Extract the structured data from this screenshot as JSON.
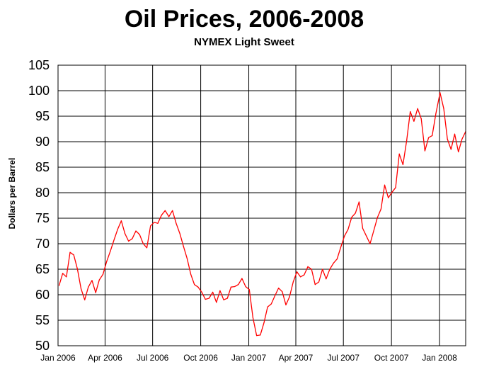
{
  "chart_data": {
    "type": "line",
    "title": "Oil Prices, 2006-2008",
    "subtitle": "NYMEX Light Sweet",
    "xlabel": "",
    "ylabel": "Dollars per Barrel",
    "ylim": [
      50,
      105
    ],
    "xlim": [
      "2006-01-01",
      "2008-02-20"
    ],
    "grid": true,
    "y_ticks": [
      "50",
      "55",
      "60",
      "65",
      "70",
      "75",
      "80",
      "85",
      "90",
      "95",
      "100",
      "105"
    ],
    "x_ticks": [
      {
        "date": "2006-01-01",
        "label": "Jan 2006"
      },
      {
        "date": "2006-04-01",
        "label": "Apr 2006"
      },
      {
        "date": "2006-07-01",
        "label": "Jul 2006"
      },
      {
        "date": "2006-10-01",
        "label": "Oct 2006"
      },
      {
        "date": "2007-01-01",
        "label": "Jan 2007"
      },
      {
        "date": "2007-04-01",
        "label": "Apr 2007"
      },
      {
        "date": "2007-07-01",
        "label": "Jul 2007"
      },
      {
        "date": "2007-10-01",
        "label": "Oct 2007"
      },
      {
        "date": "2008-01-01",
        "label": "Jan 2008"
      }
    ],
    "line_color": "#ff0000",
    "series": [
      {
        "x": [
          "2006-01-03",
          "2006-01-10",
          "2006-01-17",
          "2006-01-24",
          "2006-01-31",
          "2006-02-07",
          "2006-02-14",
          "2006-02-21",
          "2006-02-28",
          "2006-03-07",
          "2006-03-14",
          "2006-03-21",
          "2006-03-28",
          "2006-04-04",
          "2006-04-11",
          "2006-04-18",
          "2006-04-25",
          "2006-05-02",
          "2006-05-09",
          "2006-05-16",
          "2006-05-23",
          "2006-05-30",
          "2006-06-06",
          "2006-06-13",
          "2006-06-20",
          "2006-06-27",
          "2006-07-04",
          "2006-07-11",
          "2006-07-18",
          "2006-07-25",
          "2006-08-01",
          "2006-08-08",
          "2006-08-15",
          "2006-08-22",
          "2006-08-29",
          "2006-09-05",
          "2006-09-12",
          "2006-09-19",
          "2006-09-26",
          "2006-10-03",
          "2006-10-10",
          "2006-10-17",
          "2006-10-24",
          "2006-10-31",
          "2006-11-07",
          "2006-11-14",
          "2006-11-21",
          "2006-11-28",
          "2006-12-05",
          "2006-12-12",
          "2006-12-19",
          "2006-12-26",
          "2007-01-02",
          "2007-01-09",
          "2007-01-16",
          "2007-01-23",
          "2007-01-30",
          "2007-02-06",
          "2007-02-13",
          "2007-02-20",
          "2007-02-27",
          "2007-03-06",
          "2007-03-13",
          "2007-03-20",
          "2007-03-27",
          "2007-04-03",
          "2007-04-10",
          "2007-04-17",
          "2007-04-24",
          "2007-05-01",
          "2007-05-08",
          "2007-05-15",
          "2007-05-22",
          "2007-05-29",
          "2007-06-05",
          "2007-06-12",
          "2007-06-19",
          "2007-06-26",
          "2007-07-03",
          "2007-07-10",
          "2007-07-17",
          "2007-07-24",
          "2007-07-31",
          "2007-08-07",
          "2007-08-14",
          "2007-08-21",
          "2007-08-28",
          "2007-09-04",
          "2007-09-11",
          "2007-09-18",
          "2007-09-25",
          "2007-10-02",
          "2007-10-09",
          "2007-10-16",
          "2007-10-23",
          "2007-10-30",
          "2007-11-06",
          "2007-11-13",
          "2007-11-20",
          "2007-11-27",
          "2007-12-04",
          "2007-12-11",
          "2007-12-18",
          "2007-12-25",
          "2008-01-02",
          "2008-01-09",
          "2008-01-16",
          "2008-01-23",
          "2008-01-30",
          "2008-02-06",
          "2008-02-13",
          "2008-02-20"
        ],
        "values": [
          61.8,
          64.2,
          63.5,
          68.3,
          67.8,
          65.1,
          61.2,
          59.0,
          61.5,
          62.8,
          60.4,
          62.9,
          64.0,
          66.5,
          68.5,
          70.7,
          72.8,
          74.5,
          72.0,
          70.5,
          71.0,
          72.5,
          71.8,
          70.0,
          69.2,
          73.5,
          74.2,
          74.0,
          75.6,
          76.5,
          75.3,
          76.5,
          74.0,
          72.0,
          69.5,
          67.1,
          64.0,
          62.0,
          61.5,
          60.5,
          59.1,
          59.3,
          60.5,
          58.5,
          60.8,
          59.0,
          59.3,
          61.5,
          61.6,
          62.0,
          63.2,
          61.6,
          61.0,
          55.5,
          52.0,
          52.1,
          54.5,
          57.6,
          58.2,
          59.8,
          61.3,
          60.6,
          58.0,
          59.6,
          62.5,
          64.5,
          63.5,
          63.9,
          65.5,
          65.0,
          62.0,
          62.5,
          65.0,
          63.1,
          65.0,
          66.2,
          67.0,
          69.3,
          71.5,
          72.8,
          75.2,
          76.0,
          78.2,
          73.0,
          71.5,
          70.0,
          72.5,
          75.1,
          76.8,
          81.5,
          79.0,
          80.1,
          81.0,
          87.6,
          85.5,
          90.2,
          95.9,
          94.0,
          96.5,
          94.5,
          88.2,
          90.8,
          91.2,
          95.5,
          99.6,
          96.5,
          90.5,
          88.5,
          91.5,
          88.0,
          90.5,
          92.0
        ]
      }
    ]
  }
}
